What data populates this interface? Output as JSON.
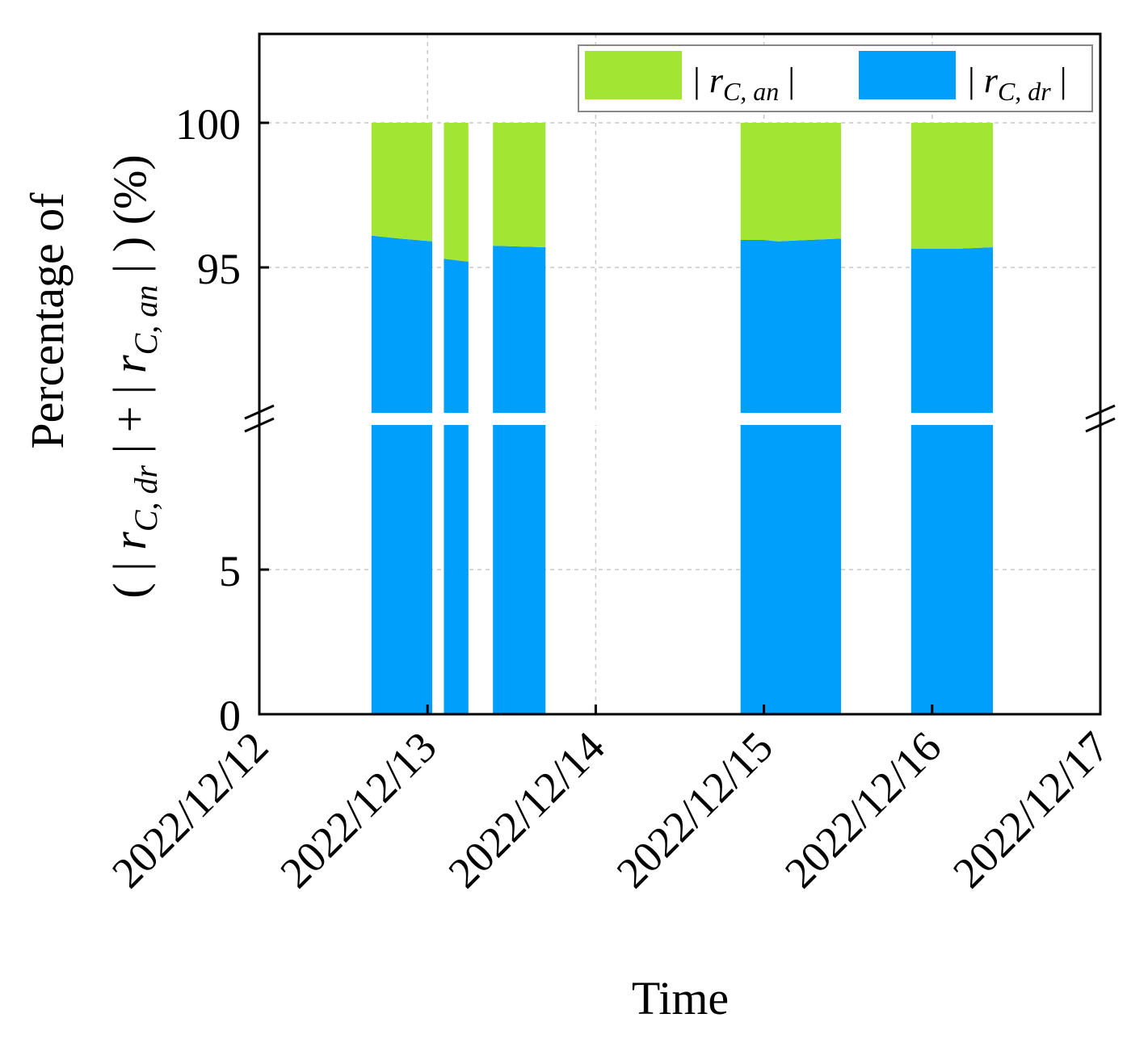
{
  "chart_data": {
    "type": "area",
    "x_type": "date",
    "xlabel": "Time",
    "ylabel_line1": "Percentage of",
    "ylabel_line2": {
      "prefix": "( | ",
      "var1": "r",
      "sub1": "C, dr",
      "middle": " | + | ",
      "var2": "r",
      "sub2": "C, an",
      "suffix": " | ) (%)"
    },
    "xlim": [
      "2022/12/12",
      "2022/12/17"
    ],
    "x_ticks": [
      "2022/12/12",
      "2022/12/13",
      "2022/12/14",
      "2022/12/15",
      "2022/12/16",
      "2022/12/17"
    ],
    "y_axis_broken": true,
    "y_segments": [
      {
        "ylim": [
          0,
          10
        ],
        "ticks": [
          0,
          5
        ]
      },
      {
        "ylim": [
          90,
          103
        ],
        "ticks": [
          95,
          100
        ]
      }
    ],
    "y_tick_labels": [
      "0",
      "5",
      "95",
      "100"
    ],
    "grid": true,
    "stacked": true,
    "legend_position": "top-right",
    "series": [
      {
        "key": "an",
        "legend": {
          "var": "r",
          "sub": "C, an"
        },
        "color": "#a2e633"
      },
      {
        "key": "dr",
        "legend": {
          "var": "r",
          "sub": "C, dr"
        },
        "color": "#009ffc"
      }
    ],
    "blocks": [
      {
        "start": "2022/12/12 16:00",
        "end": "2022/12/13 00:40",
        "dr_percent": [
          [
            "2022/12/12 16:00",
            96.1
          ],
          [
            "2022/12/12 20:00",
            96.0
          ],
          [
            "2022/12/13 00:40",
            95.9
          ]
        ]
      },
      {
        "start": "2022/12/13 02:20",
        "end": "2022/12/13 05:50",
        "dr_percent": [
          [
            "2022/12/13 02:20",
            95.3
          ],
          [
            "2022/12/13 05:50",
            95.2
          ]
        ]
      },
      {
        "start": "2022/12/13 09:20",
        "end": "2022/12/13 16:50",
        "dr_percent": [
          [
            "2022/12/13 09:20",
            95.75
          ],
          [
            "2022/12/13 16:50",
            95.7
          ]
        ]
      },
      {
        "start": "2022/12/14 20:40",
        "end": "2022/12/15 11:00",
        "dr_percent": [
          [
            "2022/12/14 20:40",
            95.95
          ],
          [
            "2022/12/15 00:00",
            95.95
          ],
          [
            "2022/12/15 02:00",
            95.9
          ],
          [
            "2022/12/15 11:00",
            96.0
          ]
        ]
      },
      {
        "start": "2022/12/15 21:00",
        "end": "2022/12/16 08:40",
        "dr_percent": [
          [
            "2022/12/15 21:00",
            95.65
          ],
          [
            "2022/12/16 04:00",
            95.65
          ],
          [
            "2022/12/16 08:40",
            95.7
          ]
        ]
      }
    ]
  }
}
